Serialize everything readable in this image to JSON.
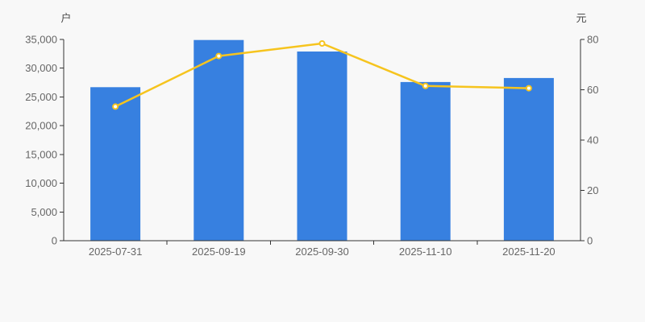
{
  "chart_data": {
    "type": "combo-bar-line",
    "categories": [
      "2025-07-31",
      "2025-09-19",
      "2025-09-30",
      "2025-11-10",
      "2025-11-20"
    ],
    "series": [
      {
        "name": "households-bars",
        "type": "bar",
        "y_axis": "left",
        "values": [
          26700,
          34900,
          32900,
          27600,
          28300
        ],
        "color": "#3780e0"
      },
      {
        "name": "price-line",
        "type": "line",
        "y_axis": "right",
        "values": [
          53.3,
          73.4,
          78.4,
          61.5,
          60.6
        ],
        "color": "#f6c41e",
        "marker_fill": "#ffffff"
      }
    ],
    "left_axis": {
      "unit": "户",
      "min": 0,
      "max": 35000,
      "tick_step": 5000,
      "tick_labels": [
        "0",
        "5,000",
        "10,000",
        "15,000",
        "20,000",
        "25,000",
        "30,000",
        "35,000"
      ]
    },
    "right_axis": {
      "unit": "元",
      "min": 0,
      "max": 80,
      "tick_step": 20,
      "tick_labels": [
        "0",
        "20",
        "40",
        "60",
        "80"
      ]
    },
    "x_axis": {
      "tick_labels": [
        "2025-07-31",
        "2025-09-19",
        "2025-09-30",
        "2025-11-10",
        "2025-11-20"
      ]
    },
    "grid": false,
    "legend": null,
    "colors": {
      "background": "#f8f8f8",
      "axis_line": "#333333",
      "tick_label": "#666666",
      "unit_label": "#4d4d4d"
    }
  }
}
